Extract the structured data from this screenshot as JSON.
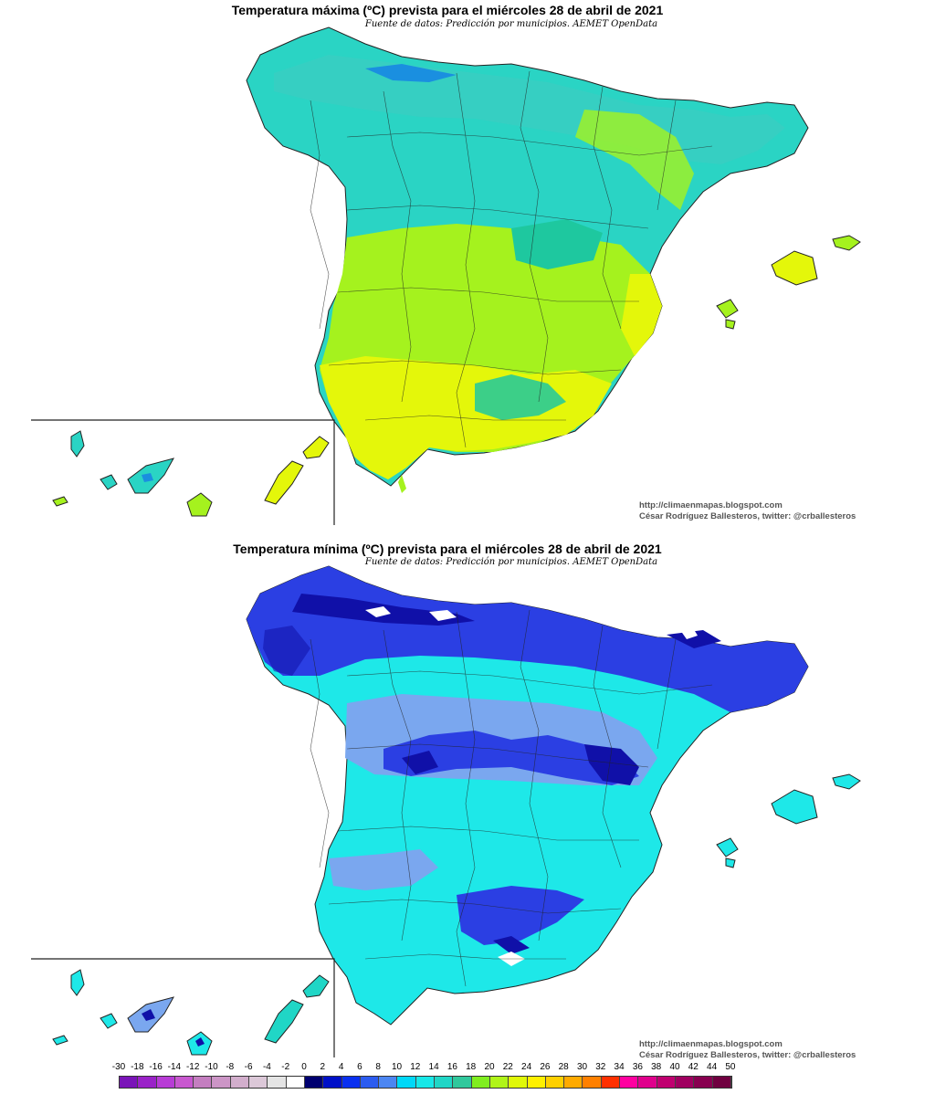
{
  "maps": {
    "max": {
      "title": "Temperatura máxima (ºC) prevista para el miércoles 28 de abril de 2021",
      "subtitle": "Fuente de datos: Predicción por municipios. AEMET OpenData",
      "credit_url": "http://climaenmapas.blogspot.com",
      "credit_author": "César Rodríguez Ballesteros, twitter: @crballesteros",
      "palette": {
        "main": "#2ad4c4",
        "north": "#36cfc2",
        "center": "#a5f21e",
        "south": "#e4f70a",
        "east": "#1ec89f",
        "mountains": "#1a8fe0"
      }
    },
    "min": {
      "title": "Temperatura mínima (ºC) prevista para el miércoles 28 de abril de 2021",
      "subtitle": "Fuente de datos: Predicción por municipios. AEMET OpenData",
      "credit_url": "http://climaenmapas.blogspot.com",
      "credit_author": "César Rodríguez Ballesteros, twitter: @crballesteros",
      "palette": {
        "main": "#1ee8e8",
        "north": "#2b3fe3",
        "center": "#7aa7ef",
        "deep": "#1010a8",
        "peaks": "#ffffff"
      }
    }
  },
  "legend": {
    "labels": [
      "-30",
      "-18",
      "-16",
      "-14",
      "-12",
      "-10",
      "-8",
      "-6",
      "-4",
      "-2",
      "0",
      "2",
      "4",
      "6",
      "8",
      "10",
      "12",
      "14",
      "16",
      "18",
      "20",
      "22",
      "24",
      "26",
      "28",
      "30",
      "32",
      "34",
      "36",
      "38",
      "40",
      "42",
      "44",
      "50"
    ],
    "colors": [
      "#7a14b8",
      "#9a22c8",
      "#b83cd6",
      "#c858cf",
      "#c47ec0",
      "#cc95c6",
      "#d2aecc",
      "#dcc8d8",
      "#e4e4e4",
      "#ffffff",
      "#000070",
      "#0010c8",
      "#0a30f0",
      "#2c5cf0",
      "#4c86f2",
      "#00d8f8",
      "#18e8e8",
      "#20d6c6",
      "#30c89c",
      "#80ee20",
      "#b0f418",
      "#e0f808",
      "#fff000",
      "#ffd000",
      "#ffaa00",
      "#ff8000",
      "#ff3000",
      "#ff00a0",
      "#e0008c",
      "#c00070",
      "#a00060",
      "#880050",
      "#700040"
    ]
  }
}
